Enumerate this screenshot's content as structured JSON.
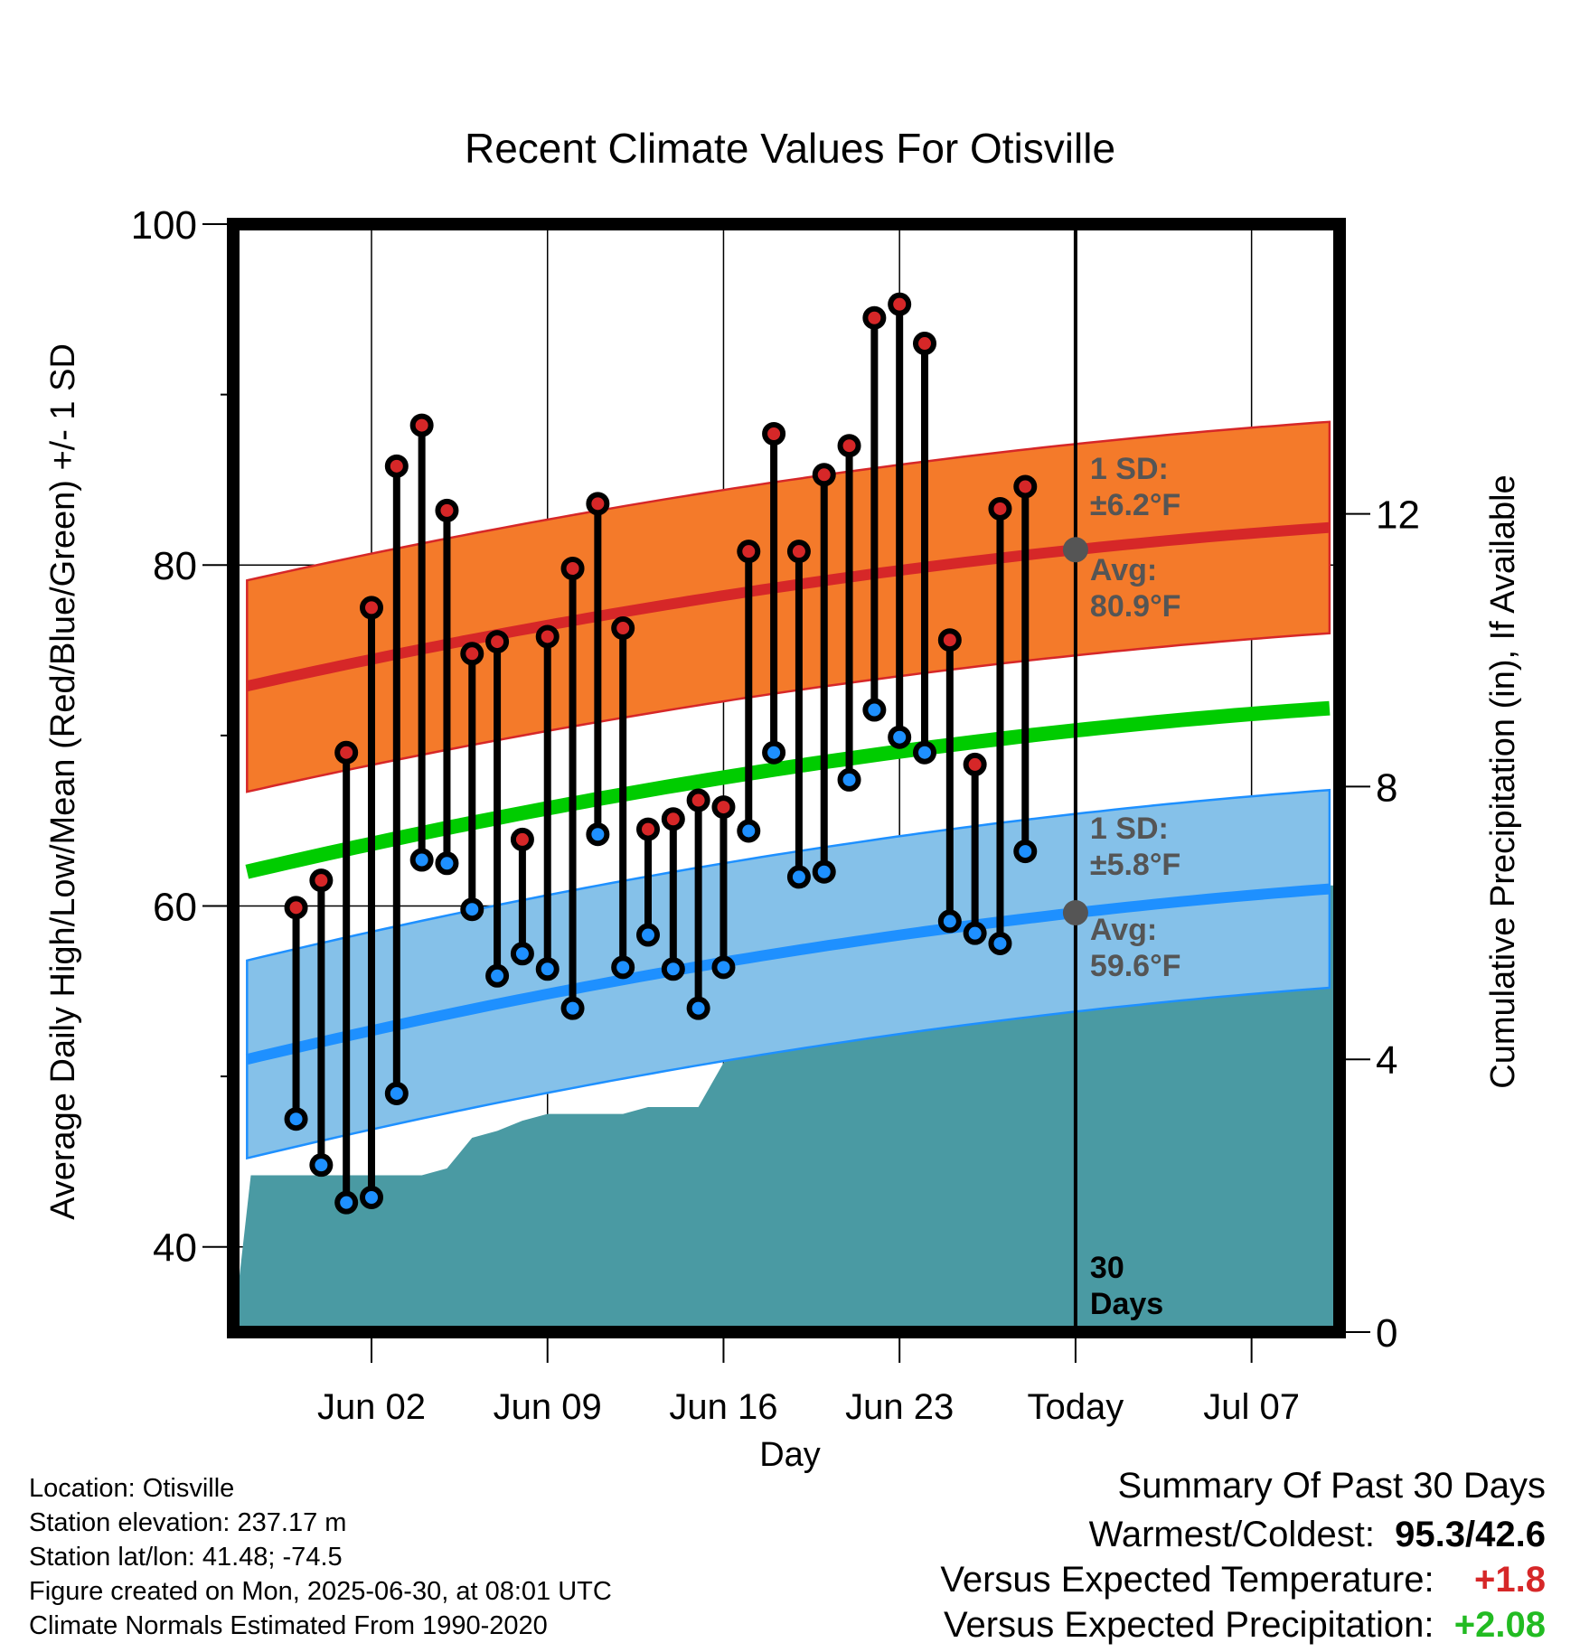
{
  "chart_data": {
    "type": "line",
    "title": "Recent Climate Values For Otisville",
    "xlabel": "Day",
    "ylabel": "Average Daily High/Low/Mean (Red/Blue/Green) +/- 1 SD",
    "y2label": "Cumulative Precipitation (in), If Available",
    "ylim": [
      35,
      100
    ],
    "y2lim": [
      0,
      16.25
    ],
    "y_ticks": [
      "40",
      "60",
      "80",
      "100"
    ],
    "y2_ticks": [
      "0",
      "4",
      "8",
      "12"
    ],
    "x_range_days": [
      -33.5,
      10.5
    ],
    "x_ticks": [
      {
        "label": "Jun 02",
        "day": -28
      },
      {
        "label": "Jun 09",
        "day": -21
      },
      {
        "label": "Jun 16",
        "day": -14
      },
      {
        "label": "Jun 23",
        "day": -7
      },
      {
        "label": "Today",
        "day": 0
      },
      {
        "label": "Jul 07",
        "day": 7
      }
    ],
    "days": [
      -31,
      -30,
      -29,
      -28,
      -27,
      -26,
      -25,
      -24,
      -23,
      -22,
      -21,
      -20,
      -19,
      -18,
      -17,
      -16,
      -15,
      -14,
      -13,
      -12,
      -11,
      -10,
      -9,
      -8,
      -7,
      -6,
      -5,
      -4,
      -3,
      -2,
      -1
    ],
    "series": [
      {
        "name": "High",
        "color": "#d62728",
        "values": [
          59.9,
          61.5,
          69.0,
          77.5,
          85.8,
          88.2,
          83.2,
          74.8,
          75.5,
          63.9,
          75.8,
          79.8,
          83.6,
          76.3,
          64.5,
          65.1,
          66.2,
          65.8,
          80.8,
          87.7,
          80.8,
          85.3,
          87.0,
          94.5,
          95.3,
          93.0,
          75.6,
          68.3,
          83.3,
          84.6,
          null
        ]
      },
      {
        "name": "Low",
        "color": "#1e90ff",
        "values": [
          47.5,
          44.8,
          42.6,
          42.9,
          49.0,
          62.7,
          62.5,
          59.8,
          55.9,
          57.2,
          56.3,
          54.0,
          64.2,
          56.4,
          58.3,
          56.3,
          54.0,
          56.4,
          64.4,
          69.0,
          61.7,
          62.0,
          67.4,
          71.5,
          69.9,
          69.0,
          59.1,
          58.4,
          57.8,
          63.2,
          null
        ]
      }
    ],
    "normal_high": {
      "avg_start": 72.9,
      "avg_today": 80.9,
      "avg_end": 82.2,
      "sd": 6.2
    },
    "normal_low": {
      "avg_start": 51.0,
      "avg_today": 59.6,
      "avg_end": 61.0,
      "sd": 5.8
    },
    "normal_mean": {
      "color": "#00cc00",
      "start": 62.0,
      "today": 70.3,
      "end": 71.6
    },
    "precip_cumulative": [
      {
        "day": -33.5,
        "in": 0.0
      },
      {
        "day": -32.8,
        "in": 2.3
      },
      {
        "day": -26.0,
        "in": 2.3
      },
      {
        "day": -25.0,
        "in": 2.4
      },
      {
        "day": -24.0,
        "in": 2.85
      },
      {
        "day": -23.0,
        "in": 2.95
      },
      {
        "day": -22.0,
        "in": 3.1
      },
      {
        "day": -21.0,
        "in": 3.2
      },
      {
        "day": -18.0,
        "in": 3.2
      },
      {
        "day": -17.0,
        "in": 3.3
      },
      {
        "day": -16.0,
        "in": 3.3
      },
      {
        "day": -15.0,
        "in": 3.3
      },
      {
        "day": -14.0,
        "in": 3.95
      },
      {
        "day": -13.0,
        "in": 4.15
      },
      {
        "day": -12.0,
        "in": 6.3
      },
      {
        "day": -9.0,
        "in": 6.3
      },
      {
        "day": -8.0,
        "in": 6.4
      },
      {
        "day": -5.0,
        "in": 6.4
      },
      {
        "day": -4.0,
        "in": 6.55
      },
      {
        "day": 10.5,
        "in": 6.55
      }
    ],
    "annotations": {
      "high_sd": [
        "1 SD:",
        "±6.2°F"
      ],
      "high_avg": [
        "Avg:",
        "80.9°F"
      ],
      "low_sd": [
        "1 SD:",
        "±5.8°F"
      ],
      "low_avg": [
        "Avg:",
        "59.6°F"
      ],
      "days_label": [
        "30",
        "Days"
      ]
    },
    "colors": {
      "high_band": "#f47a2a",
      "high_line": "#d62728",
      "low_band": "#85c1e9",
      "low_line": "#1e90ff",
      "mean_line": "#00cc00",
      "precip": "#4a9aa3",
      "marker": "#555555"
    }
  },
  "info": {
    "location": "Location: Otisville",
    "elevation": "Station elevation: 237.17 m",
    "latlon": "Station lat/lon: 41.48; -74.5",
    "created": "Figure created on Mon, 2025-06-30, at 08:01 UTC",
    "normals": "Climate Normals Estimated From 1990-2020"
  },
  "summary": {
    "heading": "Summary Of Past 30 Days",
    "warmest_label": "Warmest/Coldest:",
    "warmest_value": "95.3/42.6",
    "temp_label": "Versus Expected Temperature:",
    "temp_value": "+1.8",
    "temp_color": "#d62728",
    "precip_label": "Versus Expected Precipitation:",
    "precip_value": "+2.08",
    "precip_color": "#22bb22"
  }
}
